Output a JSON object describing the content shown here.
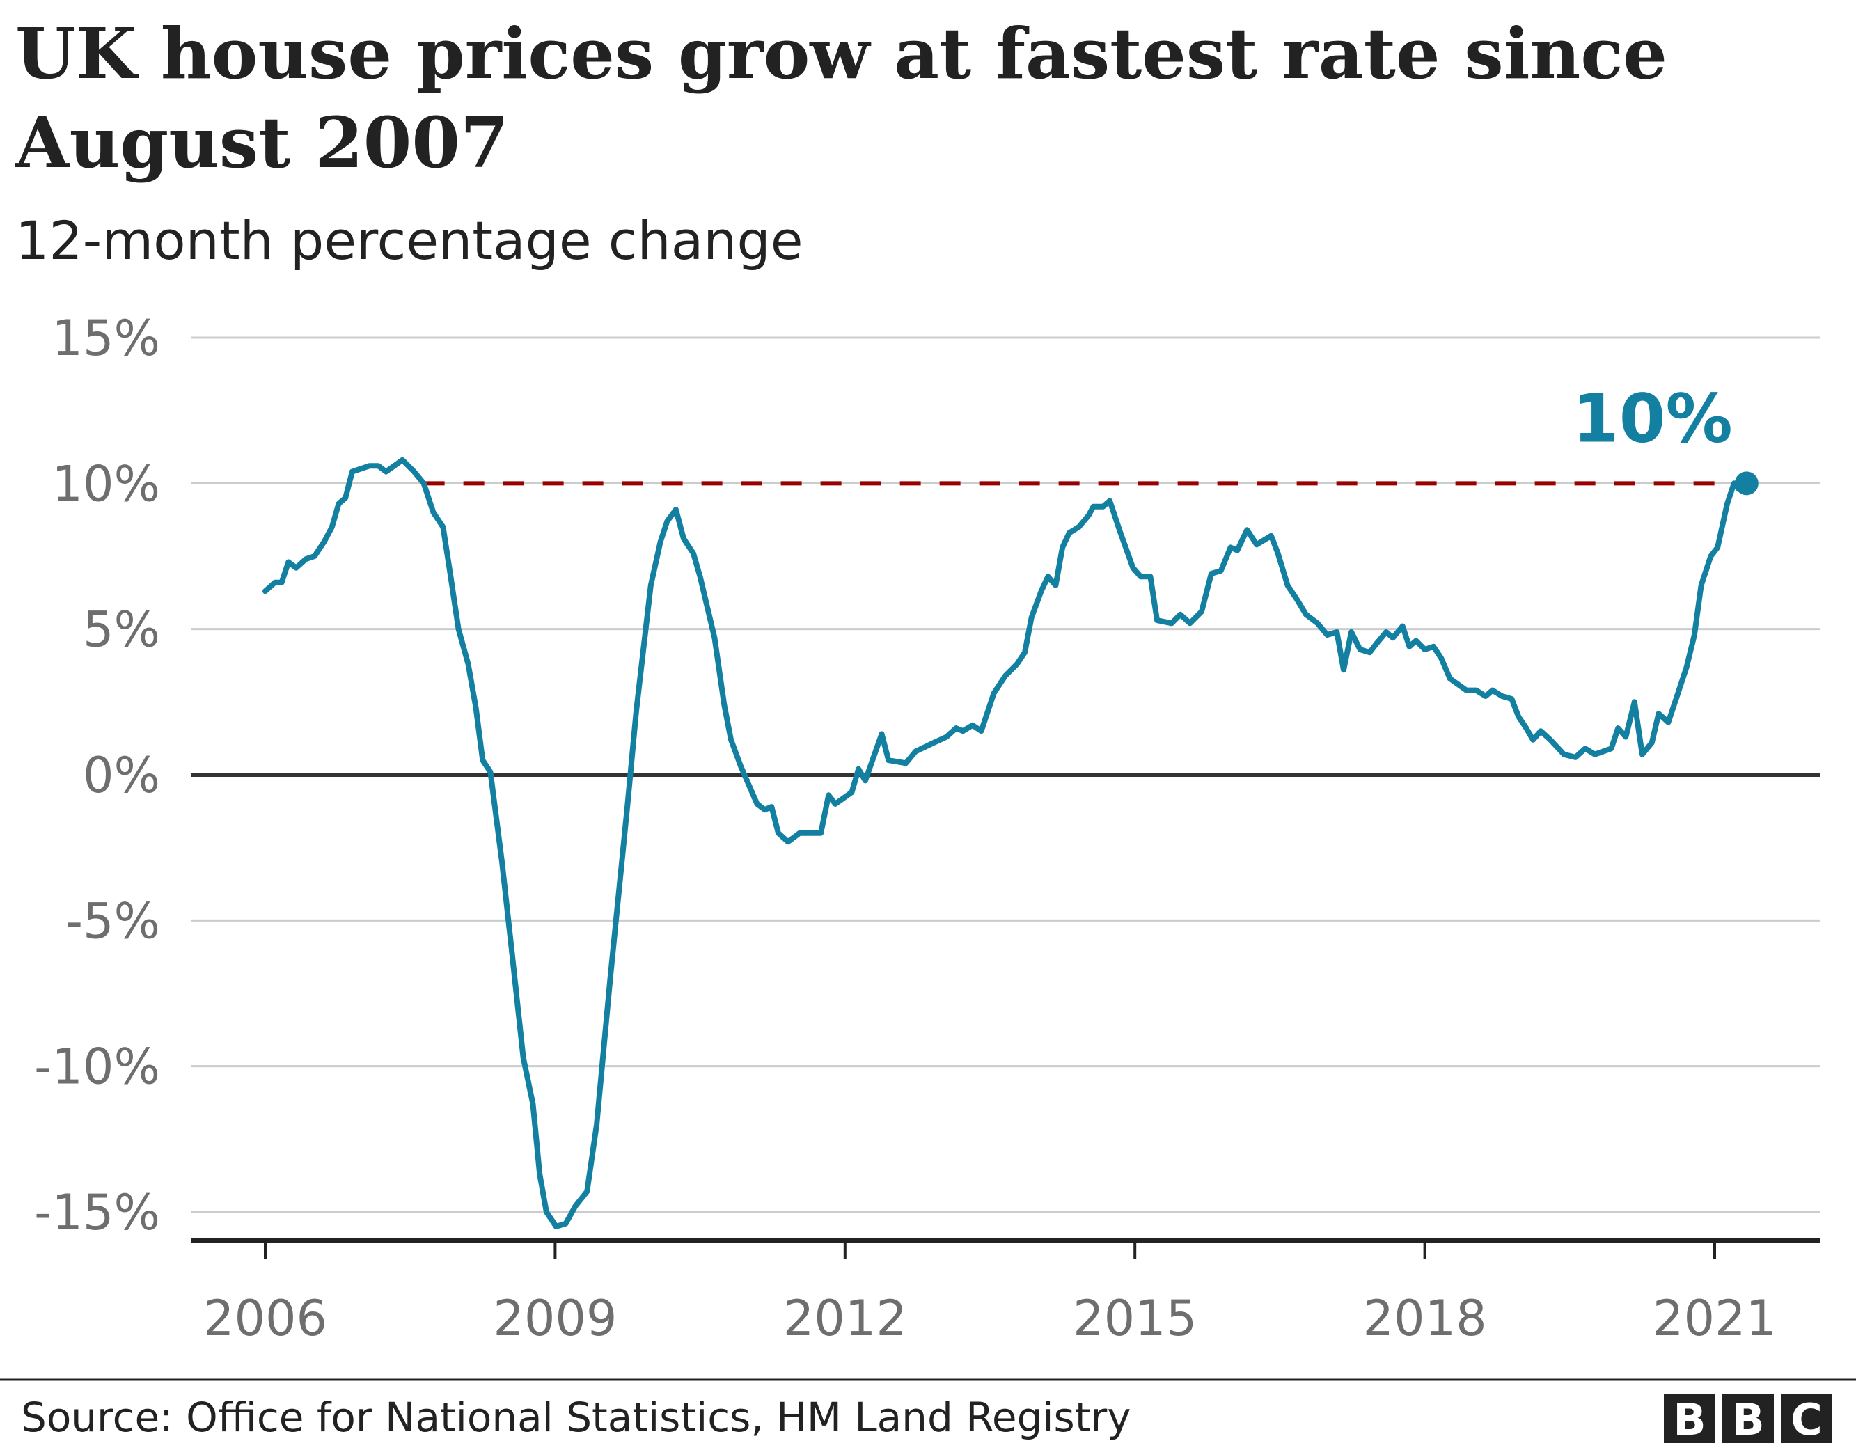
{
  "chart_data": {
    "type": "line",
    "title": "UK house prices grow at fastest rate since August 2007",
    "title_lines": [
      "UK house prices grow at fastest rate since",
      "August 2007"
    ],
    "subtitle": "12-month percentage change",
    "xlabel": "",
    "ylabel": "",
    "xlim": [
      2005.6,
      2021.9
    ],
    "ylim": [
      -16,
      15
    ],
    "grid": true,
    "y_ticks": [
      15,
      10,
      5,
      0,
      -5,
      -10,
      -15
    ],
    "y_tick_labels": [
      "15%",
      "10%",
      "5%",
      "0%",
      "-5%",
      "-10%",
      "-15%"
    ],
    "x_ticks": [
      2006,
      2009,
      2012,
      2015,
      2018,
      2021
    ],
    "x_tick_labels": [
      "2006",
      "2009",
      "2012",
      "2015",
      "2018",
      "2021"
    ],
    "series": [
      {
        "color": "#1380a1",
        "points": [
          [
            2006.0,
            6.3
          ],
          [
            2006.1,
            6.6
          ],
          [
            2006.17,
            6.6
          ],
          [
            2006.24,
            7.3
          ],
          [
            2006.32,
            7.1
          ],
          [
            2006.42,
            7.4
          ],
          [
            2006.51,
            7.5
          ],
          [
            2006.61,
            8.0
          ],
          [
            2006.69,
            8.5
          ],
          [
            2006.76,
            9.3
          ],
          [
            2006.83,
            9.5
          ],
          [
            2006.9,
            10.4
          ],
          [
            2007.08,
            10.6
          ],
          [
            2007.17,
            10.6
          ],
          [
            2007.25,
            10.4
          ],
          [
            2007.42,
            10.8
          ],
          [
            2007.54,
            10.4
          ],
          [
            2007.64,
            10.0
          ],
          [
            2007.74,
            9.0
          ],
          [
            2007.84,
            8.5
          ],
          [
            2007.91,
            7.0
          ],
          [
            2008.0,
            5.0
          ],
          [
            2008.1,
            3.8
          ],
          [
            2008.18,
            2.3
          ],
          [
            2008.25,
            0.5
          ],
          [
            2008.33,
            0.1
          ],
          [
            2008.45,
            -3.0
          ],
          [
            2008.55,
            -6.0
          ],
          [
            2008.67,
            -9.7
          ],
          [
            2008.77,
            -11.3
          ],
          [
            2008.84,
            -13.7
          ],
          [
            2008.91,
            -15.0
          ],
          [
            2009.01,
            -15.5
          ],
          [
            2009.11,
            -15.4
          ],
          [
            2009.21,
            -14.8
          ],
          [
            2009.33,
            -14.3
          ],
          [
            2009.43,
            -12.0
          ],
          [
            2009.57,
            -7.0
          ],
          [
            2009.75,
            -1.0
          ],
          [
            2009.84,
            2.2
          ],
          [
            2009.99,
            6.5
          ],
          [
            2010.09,
            8.0
          ],
          [
            2010.16,
            8.7
          ],
          [
            2010.25,
            9.1
          ],
          [
            2010.33,
            8.1
          ],
          [
            2010.43,
            7.6
          ],
          [
            2010.5,
            6.8
          ],
          [
            2010.65,
            4.7
          ],
          [
            2010.75,
            2.4
          ],
          [
            2010.82,
            1.2
          ],
          [
            2010.92,
            0.3
          ],
          [
            2011.09,
            -1.0
          ],
          [
            2011.17,
            -1.2
          ],
          [
            2011.24,
            -1.1
          ],
          [
            2011.31,
            -2.0
          ],
          [
            2011.41,
            -2.3
          ],
          [
            2011.53,
            -2.0
          ],
          [
            2011.75,
            -2.0
          ],
          [
            2011.83,
            -0.7
          ],
          [
            2011.9,
            -1.0
          ],
          [
            2012.07,
            -0.6
          ],
          [
            2012.14,
            0.2
          ],
          [
            2012.21,
            -0.2
          ],
          [
            2012.38,
            1.4
          ],
          [
            2012.45,
            0.5
          ],
          [
            2012.63,
            0.4
          ],
          [
            2012.73,
            0.8
          ],
          [
            2012.92,
            1.1
          ],
          [
            2013.05,
            1.3
          ],
          [
            2013.15,
            1.6
          ],
          [
            2013.22,
            1.5
          ],
          [
            2013.32,
            1.7
          ],
          [
            2013.41,
            1.5
          ],
          [
            2013.54,
            2.8
          ],
          [
            2013.66,
            3.4
          ],
          [
            2013.78,
            3.8
          ],
          [
            2013.86,
            4.2
          ],
          [
            2013.93,
            5.4
          ],
          [
            2014.03,
            6.3
          ],
          [
            2014.1,
            6.8
          ],
          [
            2014.18,
            6.5
          ],
          [
            2014.25,
            7.8
          ],
          [
            2014.32,
            8.3
          ],
          [
            2014.42,
            8.5
          ],
          [
            2014.52,
            8.9
          ],
          [
            2014.57,
            9.2
          ],
          [
            2014.67,
            9.2
          ],
          [
            2014.74,
            9.4
          ],
          [
            2014.84,
            8.4
          ],
          [
            2014.98,
            7.1
          ],
          [
            2015.06,
            6.8
          ],
          [
            2015.16,
            6.8
          ],
          [
            2015.23,
            5.3
          ],
          [
            2015.38,
            5.2
          ],
          [
            2015.47,
            5.5
          ],
          [
            2015.57,
            5.2
          ],
          [
            2015.69,
            5.6
          ],
          [
            2015.79,
            6.9
          ],
          [
            2015.89,
            7.0
          ],
          [
            2015.99,
            7.8
          ],
          [
            2016.06,
            7.7
          ],
          [
            2016.16,
            8.4
          ],
          [
            2016.26,
            7.9
          ],
          [
            2016.41,
            8.2
          ],
          [
            2016.48,
            7.6
          ],
          [
            2016.58,
            6.5
          ],
          [
            2016.68,
            6.0
          ],
          [
            2016.77,
            5.5
          ],
          [
            2016.89,
            5.2
          ],
          [
            2016.99,
            4.8
          ],
          [
            2017.09,
            4.9
          ],
          [
            2017.16,
            3.6
          ],
          [
            2017.24,
            4.9
          ],
          [
            2017.33,
            4.3
          ],
          [
            2017.43,
            4.2
          ],
          [
            2017.5,
            4.5
          ],
          [
            2017.6,
            4.9
          ],
          [
            2017.67,
            4.7
          ],
          [
            2017.77,
            5.1
          ],
          [
            2017.84,
            4.4
          ],
          [
            2017.91,
            4.6
          ],
          [
            2018.0,
            4.3
          ],
          [
            2018.09,
            4.4
          ],
          [
            2018.17,
            4.0
          ],
          [
            2018.26,
            3.3
          ],
          [
            2018.43,
            2.9
          ],
          [
            2018.53,
            2.9
          ],
          [
            2018.63,
            2.7
          ],
          [
            2018.7,
            2.9
          ],
          [
            2018.8,
            2.7
          ],
          [
            2018.9,
            2.6
          ],
          [
            2018.97,
            2.0
          ],
          [
            2019.05,
            1.6
          ],
          [
            2019.12,
            1.2
          ],
          [
            2019.2,
            1.5
          ],
          [
            2019.3,
            1.2
          ],
          [
            2019.44,
            0.7
          ],
          [
            2019.56,
            0.6
          ],
          [
            2019.66,
            0.9
          ],
          [
            2019.76,
            0.7
          ],
          [
            2019.93,
            0.9
          ],
          [
            2020.0,
            1.6
          ],
          [
            2020.08,
            1.3
          ],
          [
            2020.17,
            2.5
          ],
          [
            2020.25,
            0.7
          ],
          [
            2020.35,
            1.1
          ],
          [
            2020.42,
            2.1
          ],
          [
            2020.52,
            1.8
          ],
          [
            2020.62,
            2.8
          ],
          [
            2020.71,
            3.7
          ],
          [
            2020.79,
            4.8
          ],
          [
            2020.86,
            6.5
          ],
          [
            2020.96,
            7.5
          ],
          [
            2021.03,
            7.8
          ],
          [
            2021.13,
            9.3
          ],
          [
            2021.2,
            10.0
          ],
          [
            2021.25,
            9.8
          ],
          [
            2021.33,
            10.0
          ]
        ]
      }
    ],
    "reference_line": {
      "value": 10,
      "from": 2007.64,
      "to": 2021.33,
      "style": "dashed",
      "color": "#990000"
    },
    "annotation": {
      "text": "10%",
      "value": 10,
      "color": "#1380a1"
    },
    "colors": {
      "zero_line": "#333333",
      "grid": "#cccccc",
      "tick_label": "#6e6e6e"
    }
  },
  "footer": {
    "source": "Source: Office for National Statistics, HM Land Registry",
    "logo_letters": [
      "B",
      "B",
      "C"
    ]
  }
}
